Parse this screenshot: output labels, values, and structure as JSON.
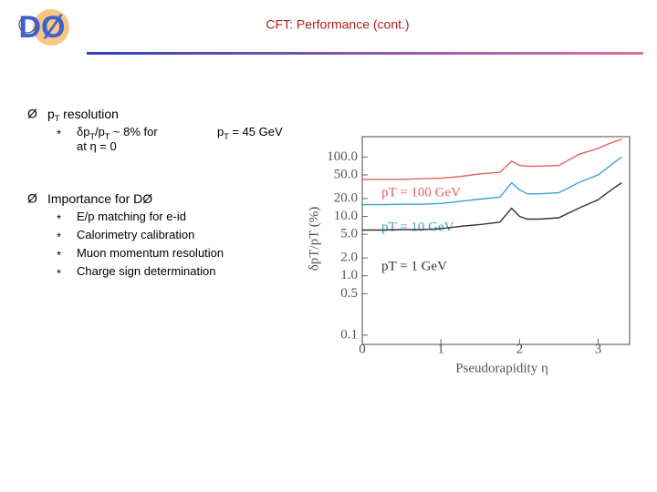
{
  "logo": "DØ",
  "title": "CFT: Performance (cont.)",
  "bullets": [
    {
      "marker": "Ø",
      "text": [
        {
          "t": "p"
        },
        {
          "t": "T",
          "sub": true
        },
        {
          "t": " resolution"
        }
      ],
      "items": [
        {
          "marker": "*",
          "text": [
            {
              "t": "δp"
            },
            {
              "t": "T",
              "sub": true
            },
            {
              "t": "/p"
            },
            {
              "t": "T",
              "sub": true
            },
            {
              "t": " ~ 8%  for"
            }
          ],
          "aside": [
            {
              "t": "p"
            },
            {
              "t": "T",
              "sub": true
            },
            {
              "t": " = 45 GeV"
            }
          ],
          "cont": [
            {
              "t": "at η = 0"
            }
          ]
        }
      ]
    },
    {
      "marker": "Ø",
      "text": [
        {
          "t": "Importance for DØ"
        }
      ],
      "items": [
        {
          "marker": "*",
          "text": [
            {
              "t": "E/p matching for e-id"
            }
          ]
        },
        {
          "marker": "*",
          "text": [
            {
              "t": "Calorimetry calibration"
            }
          ]
        },
        {
          "marker": "*",
          "text": [
            {
              "t": "Muon momentum resolution"
            }
          ]
        },
        {
          "marker": "*",
          "text": [
            {
              "t": "Charge sign determination"
            }
          ]
        }
      ]
    }
  ],
  "chart_data": {
    "type": "line",
    "x_label": "Pseudorapidity η",
    "y_label": "δpT/pT (%)",
    "xlim": [
      0,
      3.4
    ],
    "xticks": [
      0,
      1,
      2,
      3
    ],
    "ylim": [
      0.07,
      220
    ],
    "log_y": true,
    "yticks": [
      {
        "value": 100,
        "label": "100.0"
      },
      {
        "value": 50,
        "label": "50.0"
      },
      {
        "value": 20,
        "label": "20.0"
      },
      {
        "value": 10,
        "label": "10.0"
      },
      {
        "value": 5,
        "label": "5.0"
      },
      {
        "value": 2,
        "label": "2.0"
      },
      {
        "value": 1,
        "label": "1.0"
      },
      0.5,
      0.1
    ],
    "x": [
      0,
      0.25,
      0.5,
      0.75,
      1,
      1.25,
      1.5,
      1.75,
      1.9,
      2,
      2.1,
      2.25,
      2.5,
      2.75,
      3,
      3.1,
      3.2,
      3.3
    ],
    "series": [
      {
        "name": "pT = 100 GeV",
        "color": "#e06060",
        "values": [
          42,
          42,
          42,
          43,
          44,
          47,
          52,
          55,
          85,
          72,
          70,
          70,
          72,
          110,
          140,
          160,
          180,
          200
        ]
      },
      {
        "name": "pT = 10 GeV",
        "color": "#3aa0d8",
        "values": [
          15.8,
          15.8,
          16,
          16,
          16.5,
          18,
          19.6,
          21,
          37,
          28,
          24,
          24,
          25,
          37,
          50,
          63,
          80,
          100
        ]
      },
      {
        "name": "pT = 1 GeV",
        "color": "#333333",
        "values": [
          5.9,
          5.9,
          6,
          6,
          6.2,
          6.8,
          7.3,
          8,
          13.7,
          10,
          9,
          9,
          9.5,
          13.7,
          19,
          24,
          30,
          37
        ]
      }
    ]
  }
}
